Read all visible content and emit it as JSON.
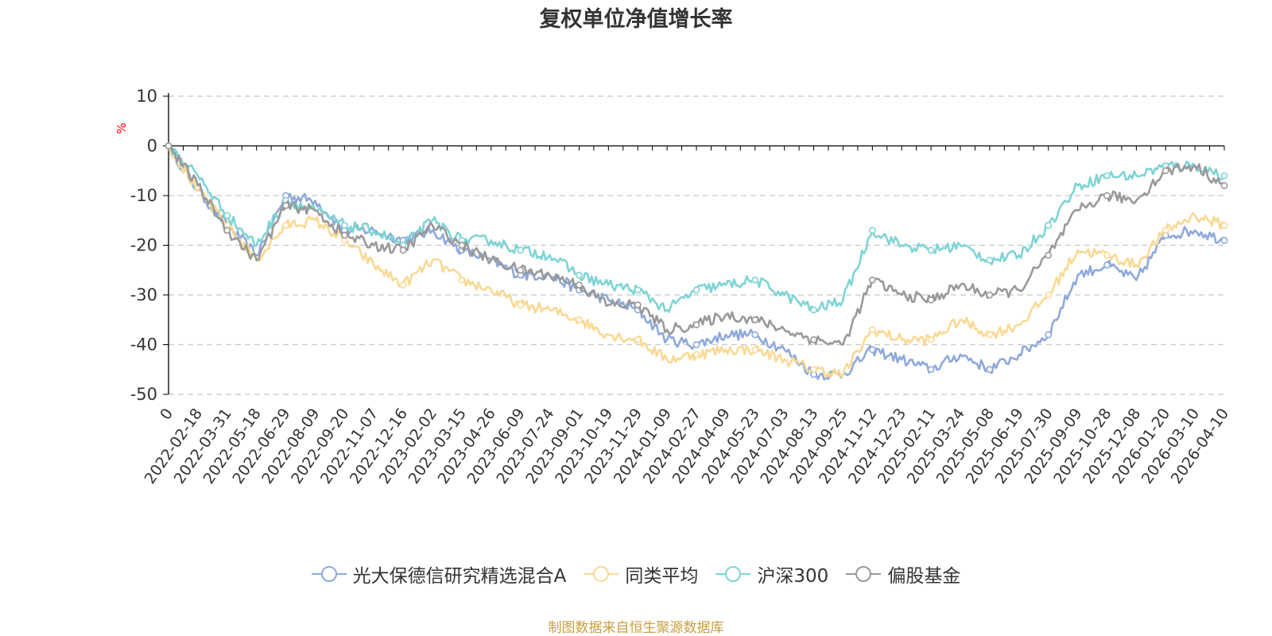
{
  "chart_data": {
    "type": "line",
    "title": "复权单位净值增长率",
    "ylabel": "%",
    "ylim": [
      -50,
      10
    ],
    "yticks": [
      10,
      0,
      -10,
      -20,
      -30,
      -40,
      -50
    ],
    "x": [
      "0",
      "2022-02-18",
      "2022-03-31",
      "2022-05-18",
      "2022-06-29",
      "2022-08-09",
      "2022-09-20",
      "2022-11-07",
      "2022-12-16",
      "2023-02-02",
      "2023-03-15",
      "2023-04-26",
      "2023-06-09",
      "2023-07-24",
      "2023-09-01",
      "2023-10-19",
      "2023-11-29",
      "2024-01-09",
      "2024-02-27",
      "2024-04-09",
      "2024-05-23",
      "2024-07-03",
      "2024-08-13",
      "2024-09-25",
      "2024-11-12",
      "2024-12-23",
      "2025-02-11",
      "2025-03-24",
      "2025-05-08",
      "2025-06-19",
      "2025-07-30",
      "2025-09-09",
      "2025-10-28",
      "2025-12-08",
      "2026-01-20",
      "2026-03-10",
      "2026-04-10"
    ],
    "grid": true,
    "legend_position": "bottom",
    "series": [
      {
        "name": "光大保德信研究精选混合A",
        "color": "#8ea9db",
        "values": [
          0,
          -9,
          -16,
          -22,
          -10,
          -11,
          -17,
          -17,
          -19,
          -17,
          -21,
          -23,
          -26,
          -26,
          -29,
          -31,
          -33,
          -39,
          -40,
          -38,
          -38,
          -41,
          -46,
          -46,
          -41,
          -43,
          -45,
          -42,
          -45,
          -42,
          -38,
          -26,
          -24,
          -27,
          -18,
          -17,
          -19
        ]
      },
      {
        "name": "同类平均",
        "color": "#f9d993",
        "values": [
          0,
          -9,
          -16,
          -23,
          -16,
          -15,
          -19,
          -24,
          -28,
          -23,
          -27,
          -29,
          -32,
          -33,
          -35,
          -38,
          -39,
          -43,
          -42,
          -41,
          -41,
          -43,
          -45,
          -46,
          -37,
          -39,
          -39,
          -35,
          -38,
          -36,
          -30,
          -21,
          -22,
          -24,
          -17,
          -14,
          -16
        ]
      },
      {
        "name": "沪深300",
        "color": "#7fd4d4",
        "values": [
          0,
          -6,
          -14,
          -20,
          -11,
          -13,
          -16,
          -17,
          -20,
          -15,
          -19,
          -19,
          -21,
          -22,
          -26,
          -28,
          -29,
          -33,
          -29,
          -28,
          -27,
          -30,
          -33,
          -31,
          -17,
          -20,
          -21,
          -20,
          -23,
          -22,
          -16,
          -8,
          -6,
          -6,
          -4,
          -4,
          -6
        ]
      },
      {
        "name": "偏股基金",
        "color": "#999999",
        "values": [
          0,
          -8,
          -17,
          -23,
          -12,
          -13,
          -18,
          -20,
          -21,
          -16,
          -20,
          -23,
          -25,
          -26,
          -28,
          -32,
          -32,
          -37,
          -36,
          -34,
          -35,
          -37,
          -39,
          -40,
          -27,
          -30,
          -31,
          -28,
          -30,
          -29,
          -22,
          -13,
          -10,
          -11,
          -5,
          -4,
          -8
        ]
      }
    ]
  },
  "source_text": "制图数据来自恒生聚源数据库",
  "colors": {
    "axis": "#000000",
    "grid": "#c8c8c8",
    "text": "#333333",
    "unit": "#ff0000",
    "source": "#c8a040"
  }
}
